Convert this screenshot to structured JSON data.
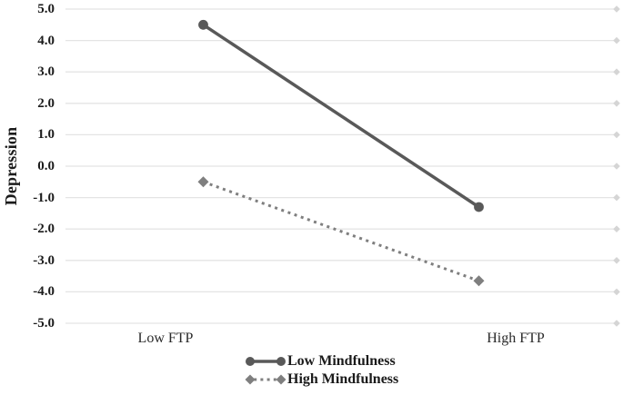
{
  "chart_data": {
    "type": "line",
    "title": "",
    "categories": [
      "Low FTP",
      "High FTP"
    ],
    "series": [
      {
        "name": "Low Mindfulness",
        "values": [
          4.5,
          -1.3
        ],
        "marker": "circle",
        "line_style": "solid",
        "color": "#595959"
      },
      {
        "name": "High Mindfulness",
        "values": [
          -0.5,
          -3.65
        ],
        "marker": "diamond",
        "line_style": "dotted",
        "color": "#7f7f7f"
      }
    ],
    "xlabel": "",
    "ylabel": "Depression",
    "ylim": [
      -5.0,
      5.0
    ],
    "y_tick_step": 1.0,
    "y_ticks": [
      "5.0",
      "4.0",
      "3.0",
      "2.0",
      "1.0",
      "0.0",
      "-1.0",
      "-2.0",
      "-3.0",
      "-4.0",
      "-5.0"
    ],
    "grid": true,
    "gridline_end_marker": "diamond",
    "legend_position": "bottom-center",
    "colors": {
      "gridline": "#e4e4e4",
      "gridline_marker": "#d5d5d5",
      "text": "#1b1b1b",
      "background": "#ffffff"
    }
  }
}
